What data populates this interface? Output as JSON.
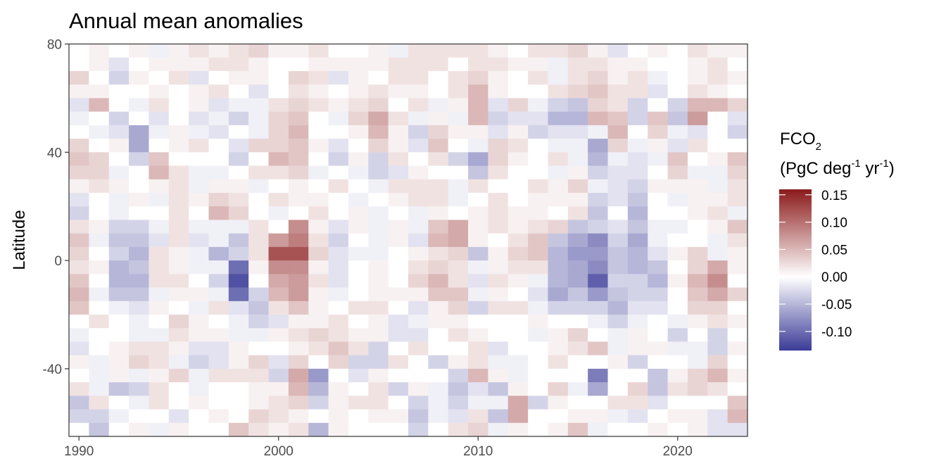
{
  "chart_data": {
    "type": "heatmap",
    "title": "Annual mean anomalies",
    "xlabel": "",
    "ylabel": "Latitude",
    "xlim": [
      1989.5,
      2023.5
    ],
    "ylim": [
      -65,
      80
    ],
    "x_ticks": [
      1990,
      2000,
      2010,
      2020
    ],
    "y_ticks": [
      80,
      40,
      0,
      -40
    ],
    "x_tick_labels": [
      "1990",
      "2000",
      "2010",
      "2020"
    ],
    "y_tick_labels": [
      "80",
      "40",
      "0",
      "-40"
    ],
    "legend": {
      "title_main": "FCO",
      "title_sub": "2",
      "unit_prefix": "(PgC deg",
      "unit_exp1": "-1",
      "unit_mid": " yr",
      "unit_exp2": "-1",
      "unit_suffix": ")",
      "range": [
        -0.135,
        0.16
      ],
      "breaks": [
        0.15,
        0.1,
        0.05,
        0.0,
        -0.05,
        -0.1
      ],
      "break_labels": [
        "0.15",
        "0.10",
        "0.05",
        "0.00",
        "-0.05",
        "-0.10"
      ],
      "colors": {
        "low": "#3b3b98",
        "mid": "#ffffff",
        "high": "#8b1a1a"
      },
      "placement": "right"
    },
    "years": [
      1990,
      1991,
      1992,
      1993,
      1994,
      1995,
      1996,
      1997,
      1998,
      1999,
      2000,
      2001,
      2002,
      2003,
      2004,
      2005,
      2006,
      2007,
      2008,
      2009,
      2010,
      2011,
      2012,
      2013,
      2014,
      2015,
      2016,
      2017,
      2018,
      2019,
      2020,
      2021,
      2022,
      2023
    ],
    "lat_bands": [
      77.5,
      72.5,
      67.5,
      62.5,
      57.5,
      52.5,
      47.5,
      42.5,
      37.5,
      32.5,
      27.5,
      22.5,
      17.5,
      12.5,
      7.5,
      2.5,
      -2.5,
      -7.5,
      -12.5,
      -17.5,
      -22.5,
      -27.5,
      -32.5,
      -37.5,
      -42.5,
      -47.5,
      -52.5,
      -57.5,
      -62.5
    ],
    "values": [
      [
        0.0,
        0.01,
        0.0,
        0.01,
        -0.01,
        0.01,
        0.02,
        0.01,
        0.02,
        0.03,
        0.01,
        0.01,
        0.02,
        0.0,
        0.0,
        0.01,
        -0.01,
        0.02,
        0.02,
        0.02,
        0.02,
        0.01,
        0.0,
        0.02,
        0.02,
        0.03,
        0.01,
        -0.02,
        0.0,
        0.01,
        0.0,
        0.02,
        0.01,
        0.01
      ],
      [
        0.0,
        0.01,
        -0.02,
        0.0,
        0.01,
        0.01,
        0.01,
        0.02,
        0.02,
        0.01,
        0.0,
        0.0,
        0.01,
        0.01,
        0.01,
        0.01,
        0.02,
        0.02,
        0.02,
        0.0,
        0.02,
        0.02,
        0.01,
        0.01,
        -0.01,
        0.02,
        0.02,
        0.01,
        0.01,
        0.0,
        0.0,
        0.01,
        0.02,
        0.0
      ],
      [
        0.03,
        0.0,
        -0.03,
        0.01,
        0.0,
        0.02,
        -0.02,
        0.0,
        0.01,
        0.01,
        0.0,
        0.03,
        0.02,
        -0.02,
        0.01,
        0.0,
        0.02,
        0.02,
        0.0,
        0.02,
        0.03,
        0.01,
        0.0,
        0.02,
        -0.01,
        0.02,
        0.03,
        0.01,
        0.02,
        -0.01,
        0.0,
        0.01,
        0.02,
        0.01
      ],
      [
        0.01,
        0.01,
        0.0,
        0.0,
        0.01,
        0.0,
        0.01,
        0.02,
        0.0,
        -0.02,
        0.0,
        0.02,
        0.01,
        0.0,
        0.01,
        0.02,
        0.01,
        0.01,
        0.0,
        0.02,
        0.05,
        0.01,
        0.0,
        0.0,
        0.02,
        0.03,
        0.04,
        0.02,
        0.02,
        -0.02,
        0.0,
        0.02,
        0.01,
        0.0
      ],
      [
        -0.02,
        0.05,
        0.0,
        -0.01,
        0.02,
        0.0,
        0.01,
        -0.02,
        -0.01,
        -0.01,
        0.02,
        0.03,
        0.02,
        0.01,
        0.02,
        0.03,
        0.0,
        0.02,
        -0.01,
        0.01,
        0.05,
        -0.02,
        0.03,
        -0.01,
        -0.03,
        -0.04,
        0.03,
        0.02,
        -0.03,
        0.0,
        -0.03,
        0.05,
        0.05,
        0.03
      ],
      [
        -0.01,
        0.0,
        -0.03,
        0.0,
        -0.02,
        0.0,
        -0.02,
        -0.01,
        -0.03,
        -0.01,
        0.03,
        0.04,
        0.0,
        -0.01,
        0.03,
        0.06,
        0.02,
        -0.01,
        0.01,
        -0.01,
        0.05,
        -0.03,
        -0.02,
        -0.02,
        -0.05,
        -0.05,
        0.05,
        0.04,
        -0.03,
        0.04,
        -0.04,
        0.07,
        0.0,
        -0.02
      ],
      [
        0.0,
        -0.01,
        -0.02,
        -0.06,
        -0.01,
        0.01,
        -0.01,
        -0.02,
        0.0,
        -0.01,
        0.03,
        0.05,
        0.0,
        0.0,
        0.01,
        0.05,
        0.01,
        -0.03,
        0.03,
        0.01,
        0.01,
        -0.02,
        0.01,
        -0.03,
        -0.02,
        -0.02,
        -0.01,
        0.05,
        0.0,
        0.03,
        -0.01,
        -0.02,
        0.0,
        -0.03
      ],
      [
        0.03,
        0.0,
        0.01,
        -0.06,
        0.0,
        0.01,
        0.02,
        0.0,
        -0.02,
        0.03,
        0.03,
        0.04,
        0.01,
        -0.02,
        0.0,
        0.03,
        0.01,
        -0.02,
        0.04,
        0.0,
        -0.01,
        0.03,
        0.02,
        0.0,
        -0.01,
        -0.01,
        -0.06,
        0.03,
        -0.01,
        0.01,
        -0.02,
        0.02,
        0.0,
        0.0
      ],
      [
        0.04,
        0.03,
        0.0,
        -0.03,
        0.04,
        0.0,
        0.0,
        0.0,
        -0.03,
        0.0,
        0.05,
        0.04,
        0.0,
        -0.03,
        0.01,
        -0.03,
        0.02,
        0.0,
        0.02,
        -0.03,
        -0.06,
        0.03,
        0.01,
        0.0,
        0.02,
        -0.01,
        -0.05,
        -0.01,
        -0.02,
        -0.01,
        0.04,
        0.0,
        0.01,
        0.04
      ],
      [
        0.03,
        0.03,
        -0.01,
        0.0,
        0.05,
        0.02,
        -0.01,
        -0.01,
        0.0,
        0.02,
        0.02,
        0.03,
        -0.01,
        0.0,
        -0.01,
        -0.03,
        -0.02,
        0.01,
        0.0,
        0.0,
        -0.04,
        0.02,
        0.0,
        0.0,
        -0.01,
        0.01,
        -0.03,
        -0.02,
        -0.02,
        0.0,
        0.03,
        -0.01,
        -0.01,
        0.03
      ],
      [
        0.01,
        0.02,
        0.01,
        0.0,
        0.01,
        0.02,
        -0.01,
        0.01,
        0.01,
        -0.01,
        0.0,
        0.01,
        0.0,
        0.02,
        0.0,
        -0.01,
        0.02,
        0.02,
        0.02,
        -0.01,
        0.02,
        0.0,
        0.0,
        0.02,
        0.01,
        0.03,
        -0.01,
        -0.02,
        -0.03,
        0.01,
        0.01,
        0.01,
        -0.01,
        0.02
      ],
      [
        -0.02,
        0.0,
        -0.01,
        0.01,
        -0.01,
        0.02,
        0.01,
        0.03,
        0.02,
        0.0,
        0.02,
        0.01,
        0.01,
        0.0,
        -0.01,
        0.0,
        0.01,
        0.02,
        0.02,
        -0.01,
        0.0,
        0.02,
        0.0,
        0.01,
        0.01,
        0.01,
        -0.03,
        -0.02,
        -0.04,
        0.0,
        -0.01,
        0.01,
        0.01,
        0.02
      ],
      [
        -0.03,
        0.0,
        -0.01,
        0.0,
        0.0,
        0.02,
        0.0,
        0.05,
        0.03,
        0.0,
        -0.01,
        0.0,
        0.02,
        0.0,
        0.01,
        -0.01,
        0.0,
        -0.01,
        0.01,
        0.0,
        0.01,
        0.02,
        0.01,
        0.01,
        0.0,
        0.02,
        -0.04,
        0.0,
        -0.05,
        0.0,
        0.0,
        0.01,
        0.02,
        -0.01
      ],
      [
        0.02,
        0.01,
        -0.03,
        -0.03,
        -0.01,
        0.02,
        -0.01,
        -0.01,
        -0.01,
        0.02,
        0.0,
        0.08,
        0.01,
        -0.02,
        0.01,
        -0.01,
        0.01,
        -0.01,
        0.04,
        0.06,
        0.01,
        0.02,
        0.01,
        0.02,
        0.03,
        -0.04,
        -0.03,
        -0.02,
        -0.04,
        -0.01,
        -0.01,
        0.0,
        0.01,
        0.04
      ],
      [
        0.04,
        -0.01,
        -0.04,
        -0.04,
        -0.02,
        0.02,
        -0.02,
        -0.01,
        -0.04,
        0.02,
        0.07,
        0.09,
        0.02,
        -0.03,
        0.0,
        -0.01,
        0.01,
        -0.02,
        0.05,
        0.06,
        0.01,
        0.0,
        0.02,
        0.04,
        -0.04,
        -0.06,
        -0.08,
        -0.03,
        -0.06,
        -0.01,
        0.0,
        0.0,
        -0.01,
        0.02
      ],
      [
        0.03,
        0.0,
        -0.03,
        -0.05,
        0.02,
        0.01,
        -0.01,
        -0.05,
        -0.03,
        0.02,
        0.12,
        0.12,
        0.03,
        -0.02,
        -0.01,
        -0.01,
        0.0,
        0.01,
        0.02,
        0.03,
        -0.04,
        0.01,
        0.03,
        0.04,
        -0.05,
        -0.07,
        -0.07,
        -0.04,
        -0.05,
        -0.02,
        0.01,
        0.03,
        -0.01,
        0.01
      ],
      [
        0.02,
        0.01,
        -0.05,
        -0.04,
        0.02,
        0.01,
        -0.01,
        -0.01,
        -0.1,
        0.01,
        0.08,
        0.08,
        0.01,
        -0.02,
        0.0,
        0.01,
        0.0,
        0.02,
        0.03,
        0.02,
        -0.01,
        0.01,
        0.02,
        0.02,
        -0.05,
        -0.06,
        -0.08,
        -0.04,
        -0.05,
        -0.04,
        0.0,
        0.03,
        0.06,
        0.01
      ],
      [
        0.04,
        0.0,
        -0.05,
        -0.05,
        0.02,
        0.02,
        0.0,
        -0.03,
        -0.12,
        0.0,
        0.06,
        0.07,
        0.02,
        -0.02,
        0.0,
        0.01,
        0.0,
        0.03,
        0.05,
        0.02,
        -0.02,
        0.02,
        0.01,
        -0.01,
        -0.05,
        -0.06,
        -0.11,
        -0.03,
        -0.03,
        -0.05,
        0.01,
        0.05,
        0.08,
        0.0
      ],
      [
        0.05,
        -0.01,
        -0.04,
        -0.04,
        -0.01,
        0.01,
        0.01,
        -0.01,
        -0.1,
        -0.03,
        0.05,
        0.07,
        0.01,
        -0.01,
        0.0,
        0.01,
        0.01,
        0.01,
        0.04,
        0.04,
        -0.01,
        0.01,
        0.0,
        -0.02,
        -0.06,
        -0.04,
        -0.07,
        -0.04,
        -0.03,
        -0.03,
        0.0,
        0.04,
        0.06,
        0.03
      ],
      [
        0.04,
        0.0,
        -0.01,
        -0.02,
        0.01,
        0.0,
        -0.01,
        0.02,
        -0.02,
        -0.04,
        0.02,
        0.04,
        0.01,
        0.0,
        0.02,
        0.02,
        0.0,
        -0.02,
        0.01,
        0.03,
        -0.03,
        0.02,
        0.02,
        -0.01,
        -0.03,
        -0.03,
        -0.03,
        -0.05,
        -0.02,
        -0.02,
        0.0,
        0.03,
        0.03,
        0.0
      ],
      [
        0.0,
        0.02,
        0.0,
        -0.01,
        0.0,
        0.03,
        0.01,
        0.0,
        -0.01,
        -0.03,
        -0.02,
        0.01,
        0.01,
        0.02,
        0.0,
        0.01,
        -0.02,
        -0.01,
        0.01,
        0.01,
        0.0,
        0.0,
        0.0,
        0.01,
        0.0,
        0.0,
        -0.01,
        -0.03,
        -0.01,
        0.0,
        -0.01,
        0.01,
        0.02,
        0.01
      ],
      [
        -0.01,
        0.0,
        0.0,
        -0.01,
        -0.01,
        0.02,
        0.01,
        0.01,
        -0.01,
        -0.01,
        0.01,
        0.02,
        0.03,
        0.02,
        0.01,
        0.01,
        -0.02,
        -0.02,
        0.0,
        0.02,
        0.01,
        0.0,
        0.0,
        -0.01,
        0.01,
        0.03,
        0.0,
        -0.01,
        0.01,
        0.0,
        -0.03,
        0.0,
        -0.03,
        0.0
      ],
      [
        -0.02,
        0.0,
        0.01,
        0.02,
        0.02,
        0.01,
        -0.02,
        -0.02,
        0.01,
        0.0,
        0.0,
        0.01,
        0.02,
        0.04,
        0.02,
        -0.03,
        0.0,
        0.02,
        0.0,
        0.0,
        0.02,
        -0.02,
        0.0,
        0.0,
        0.01,
        0.02,
        0.04,
        -0.01,
        0.01,
        0.01,
        -0.01,
        -0.01,
        -0.03,
        0.01
      ],
      [
        0.01,
        -0.01,
        0.01,
        0.03,
        0.02,
        -0.01,
        -0.03,
        -0.02,
        0.01,
        0.03,
        -0.02,
        0.03,
        0.0,
        0.03,
        -0.03,
        -0.03,
        0.02,
        0.0,
        -0.03,
        0.01,
        0.02,
        -0.01,
        -0.01,
        0.0,
        0.02,
        0.0,
        0.0,
        0.01,
        -0.03,
        0.0,
        0.0,
        -0.01,
        0.03,
        0.0
      ],
      [
        0.0,
        -0.01,
        0.01,
        -0.01,
        0.01,
        0.03,
        -0.01,
        0.02,
        0.02,
        0.02,
        -0.03,
        0.06,
        -0.07,
        0.0,
        -0.02,
        0.01,
        0.0,
        0.0,
        0.0,
        -0.03,
        0.05,
        0.01,
        -0.01,
        0.0,
        0.0,
        0.0,
        -0.09,
        0.0,
        0.0,
        -0.04,
        0.01,
        0.03,
        0.05,
        0.01
      ],
      [
        0.02,
        -0.01,
        -0.04,
        -0.03,
        0.02,
        0.0,
        -0.01,
        0.0,
        0.0,
        0.01,
        0.01,
        0.05,
        -0.05,
        0.01,
        0.0,
        0.02,
        -0.03,
        0.01,
        -0.01,
        -0.04,
        -0.02,
        -0.04,
        0.01,
        0.0,
        0.03,
        -0.01,
        -0.06,
        0.0,
        0.03,
        -0.04,
        0.02,
        0.03,
        0.02,
        0.0
      ],
      [
        -0.04,
        0.02,
        0.0,
        -0.01,
        0.02,
        0.0,
        0.01,
        0.0,
        0.0,
        0.01,
        0.02,
        0.03,
        -0.03,
        0.01,
        0.02,
        0.02,
        0.0,
        -0.03,
        -0.01,
        -0.03,
        -0.01,
        -0.01,
        0.06,
        -0.03,
        0.01,
        0.0,
        0.0,
        0.02,
        0.02,
        -0.02,
        0.0,
        0.0,
        0.0,
        0.04
      ],
      [
        -0.03,
        -0.03,
        -0.01,
        0.0,
        0.0,
        -0.02,
        0.0,
        0.01,
        0.0,
        0.03,
        0.02,
        0.01,
        0.0,
        0.01,
        0.0,
        0.01,
        0.01,
        -0.04,
        -0.01,
        -0.02,
        0.02,
        -0.04,
        0.06,
        0.0,
        0.0,
        0.01,
        0.01,
        -0.01,
        -0.02,
        0.0,
        0.01,
        0.01,
        -0.02,
        0.05
      ],
      [
        0.0,
        -0.04,
        0.0,
        0.01,
        -0.01,
        0.01,
        0.0,
        0.0,
        0.04,
        0.02,
        0.01,
        0.02,
        -0.05,
        0.01,
        0.0,
        0.0,
        0.0,
        -0.03,
        0.0,
        0.02,
        0.03,
        -0.01,
        0.01,
        0.0,
        0.01,
        0.04,
        -0.01,
        0.0,
        0.0,
        0.01,
        0.0,
        0.01,
        -0.02,
        -0.02
      ]
    ]
  }
}
